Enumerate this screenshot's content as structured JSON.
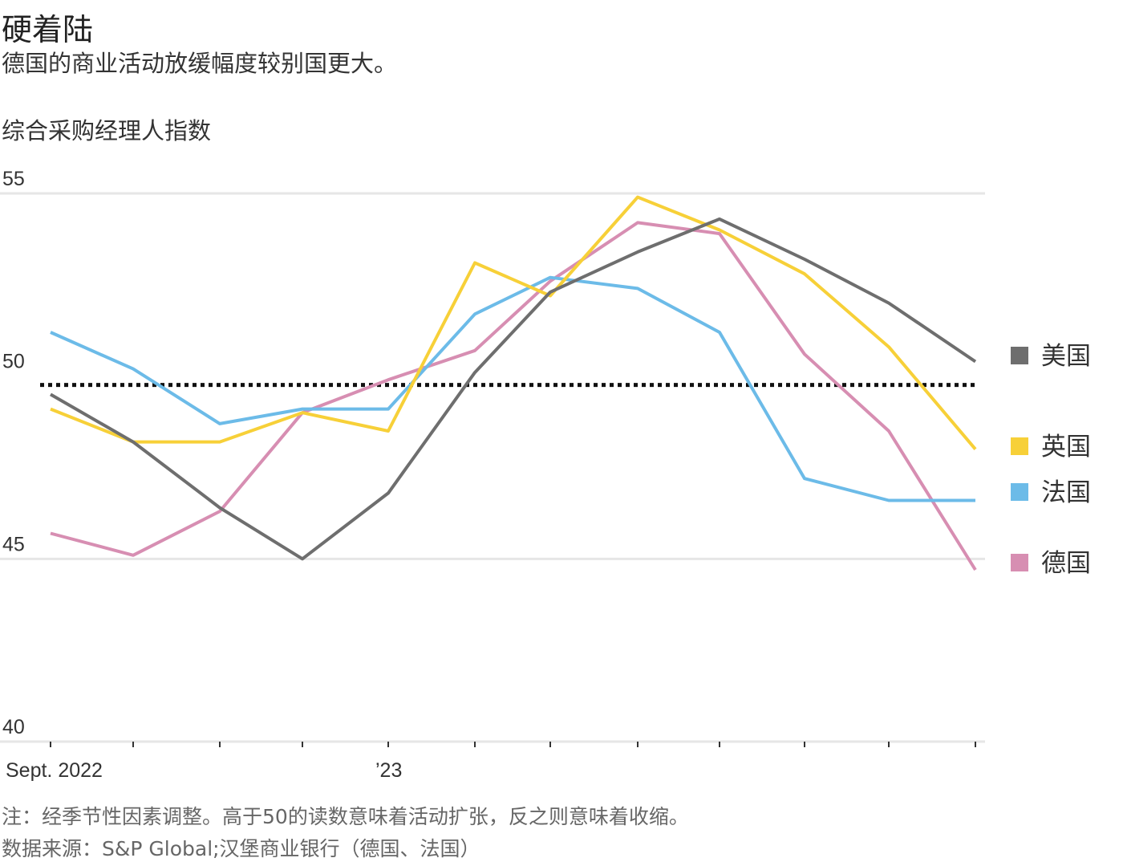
{
  "header": {
    "title": "硬着陆",
    "subtitle": "德国的商业活动放缓幅度较别国更大。"
  },
  "footer": {
    "note": "注：经季节性因素调整。高于50的读数意味着活动扩张，反之则意味着收缩。",
    "source": "数据来源：S&P Global;汉堡商业银行（德国、法国）"
  },
  "colors": {
    "美国": "#6e6e6e",
    "英国": "#f7d038",
    "法国": "#6cbbe8",
    "德国": "#d78eb2",
    "grid": "#e6e6e6",
    "reference": "#111111"
  },
  "chart_data": {
    "type": "line",
    "ylabel": "综合采购经理人指数",
    "ylim": [
      40,
      55
    ],
    "yticks": [
      40,
      45,
      50,
      55
    ],
    "reference_line": 50,
    "x": [
      "2022-09",
      "2022-10",
      "2022-11",
      "2022-12",
      "2023-01",
      "2023-02",
      "2023-03",
      "2023-04",
      "2023-05",
      "2023-06",
      "2023-07",
      "2023-08"
    ],
    "xtick_labels": [
      "Sept. 2022",
      "",
      "",
      "",
      "’23",
      "",
      "",
      "",
      "",
      "",
      "",
      ""
    ],
    "legend": "right",
    "series": [
      {
        "name": "美国",
        "values": [
          49.5,
          48.2,
          46.4,
          45.0,
          46.8,
          50.1,
          52.3,
          53.4,
          54.3,
          53.2,
          52.0,
          50.4
        ]
      },
      {
        "name": "英国",
        "values": [
          49.1,
          48.2,
          48.2,
          49.0,
          48.5,
          53.1,
          52.2,
          54.9,
          54.0,
          52.8,
          50.8,
          48.0
        ]
      },
      {
        "name": "法国",
        "values": [
          51.2,
          50.2,
          48.7,
          49.1,
          49.1,
          51.7,
          52.7,
          52.4,
          51.2,
          47.2,
          46.6,
          46.6
        ]
      },
      {
        "name": "德国",
        "values": [
          45.7,
          45.1,
          46.3,
          49.0,
          49.9,
          50.7,
          52.6,
          54.2,
          53.9,
          50.6,
          48.5,
          44.7
        ]
      }
    ]
  }
}
